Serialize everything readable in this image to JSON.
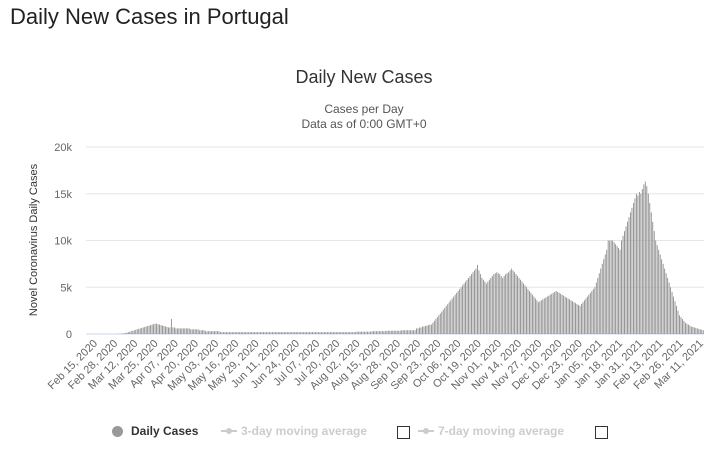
{
  "page": {
    "title": "Daily New Cases in Portugal"
  },
  "legend": {
    "items": [
      {
        "label": "Daily Cases",
        "active": true
      },
      {
        "label": "3-day moving average",
        "active": false
      },
      {
        "label": "7-day moving average",
        "active": false
      }
    ]
  },
  "colors": {
    "bar": "#8c8c8c",
    "grid": "#e6e6e6",
    "axis": "#666666",
    "inactive": "#cccccc"
  },
  "chart_data": {
    "type": "bar",
    "title": "Daily New Cases",
    "subtitle": [
      "Cases per Day",
      "Data as of 0:00 GMT+0"
    ],
    "xlabel": "",
    "ylabel": "Novel Coronavirus Daily Cases",
    "ylim": [
      0,
      20000
    ],
    "yticks": [
      0,
      5000,
      10000,
      15000,
      20000
    ],
    "ytick_labels": [
      "0",
      "5k",
      "10k",
      "15k",
      "20k"
    ],
    "xtick_labels": [
      "Feb 15, 2020",
      "Feb 28, 2020",
      "Mar 12, 2020",
      "Mar 25, 2020",
      "Apr 07, 2020",
      "Apr 20, 2020",
      "May 03, 2020",
      "May 16, 2020",
      "May 29, 2020",
      "Jun 11, 2020",
      "Jun 24, 2020",
      "Jul 07, 2020",
      "Jul 20, 2020",
      "Aug 02, 2020",
      "Aug 15, 2020",
      "Aug 28, 2020",
      "Sep 10, 2020",
      "Sep 23, 2020",
      "Oct 06, 2020",
      "Oct 19, 2020",
      "Nov 01, 2020",
      "Nov 14, 2020",
      "Nov 27, 2020",
      "Dec 10, 2020",
      "Dec 23, 2020",
      "Jan 05, 2021",
      "Jan 18, 2021",
      "Jan 31, 2021",
      "Feb 13, 2021",
      "Feb 26, 2021",
      "Mar 11, 2021"
    ],
    "start_date": "Feb 15, 2020",
    "end_date": "Mar 15, 2021",
    "grid": true,
    "legend_position": "bottom",
    "series": [
      {
        "name": "Daily Cases",
        "approximated": true,
        "values": [
          0,
          0,
          0,
          0,
          0,
          0,
          0,
          0,
          0,
          0,
          0,
          0,
          0,
          0,
          0,
          0,
          0,
          2,
          2,
          4,
          10,
          15,
          20,
          35,
          50,
          70,
          100,
          150,
          200,
          250,
          300,
          350,
          400,
          450,
          500,
          550,
          600,
          650,
          700,
          750,
          800,
          850,
          900,
          950,
          1000,
          1050,
          1100,
          1100,
          1050,
          1000,
          950,
          900,
          850,
          800,
          750,
          700,
          700,
          1600,
          700,
          700,
          600,
          600,
          600,
          600,
          600,
          600,
          600,
          600,
          600,
          600,
          500,
          500,
          500,
          500,
          500,
          500,
          400,
          400,
          400,
          400,
          300,
          300,
          300,
          300,
          300,
          300,
          300,
          300,
          300,
          300,
          200,
          200,
          200,
          200,
          200,
          200,
          200,
          200,
          200,
          200,
          200,
          200,
          200,
          200,
          200,
          200,
          200,
          200,
          200,
          200,
          200,
          200,
          200,
          200,
          200,
          200,
          200,
          200,
          200,
          200,
          200,
          200,
          200,
          200,
          200,
          200,
          200,
          200,
          200,
          200,
          200,
          200,
          200,
          200,
          200,
          200,
          200,
          200,
          200,
          200,
          200,
          200,
          200,
          200,
          200,
          200,
          200,
          200,
          200,
          200,
          200,
          200,
          200,
          200,
          200,
          200,
          200,
          200,
          200,
          200,
          200,
          200,
          200,
          200,
          200,
          200,
          200,
          200,
          200,
          200,
          200,
          200,
          200,
          200,
          200,
          200,
          200,
          200,
          200,
          200,
          200,
          200,
          250,
          250,
          250,
          250,
          250,
          250,
          250,
          250,
          250,
          250,
          300,
          300,
          300,
          300,
          300,
          300,
          300,
          300,
          300,
          300,
          350,
          350,
          350,
          350,
          350,
          350,
          350,
          350,
          350,
          350,
          400,
          400,
          400,
          400,
          400,
          400,
          400,
          400,
          400,
          400,
          600,
          600,
          700,
          700,
          800,
          800,
          850,
          900,
          950,
          1000,
          1000,
          1200,
          1400,
          1600,
          1800,
          2000,
          2200,
          2400,
          2600,
          2800,
          3000,
          3200,
          3400,
          3600,
          3800,
          4000,
          4200,
          4400,
          4600,
          4800,
          5000,
          5200,
          5400,
          5600,
          5800,
          6000,
          6200,
          6400,
          6600,
          6800,
          7000,
          7400,
          6800,
          6400,
          6000,
          5800,
          5600,
          5400,
          5600,
          5800,
          6000,
          6200,
          6400,
          6500,
          6600,
          6500,
          6400,
          6200,
          6000,
          6200,
          6400,
          6500,
          6600,
          6800,
          7000,
          6800,
          6600,
          6400,
          6200,
          6000,
          5800,
          5600,
          5400,
          5200,
          5000,
          4800,
          4600,
          4400,
          4200,
          4000,
          3800,
          3600,
          3400,
          3500,
          3600,
          3700,
          3800,
          3900,
          4000,
          4100,
          4200,
          4300,
          4400,
          4500,
          4600,
          4500,
          4400,
          4300,
          4200,
          4100,
          4000,
          3900,
          3800,
          3700,
          3600,
          3500,
          3400,
          3300,
          3200,
          3100,
          3000,
          3200,
          3400,
          3600,
          3800,
          4000,
          4200,
          4400,
          4600,
          4800,
          5000,
          5500,
          6000,
          6500,
          7000,
          7500,
          8000,
          8500,
          9000,
          10000,
          10000,
          10000,
          10000,
          9800,
          9600,
          9400,
          9200,
          9000,
          10000,
          10500,
          11000,
          11500,
          12000,
          12500,
          13000,
          13500,
          14000,
          14500,
          15000,
          14800,
          15200,
          15000,
          15500,
          16000,
          16300,
          15800,
          15000,
          14000,
          13000,
          12000,
          11000,
          10000,
          9500,
          9000,
          8500,
          8000,
          7500,
          7000,
          6500,
          6000,
          5500,
          5000,
          4500,
          4000,
          3500,
          3000,
          2500,
          2000,
          1800,
          1600,
          1400,
          1200,
          1100,
          1000,
          900,
          800,
          750,
          700,
          650,
          600,
          550,
          500,
          450,
          400
        ]
      }
    ]
  }
}
